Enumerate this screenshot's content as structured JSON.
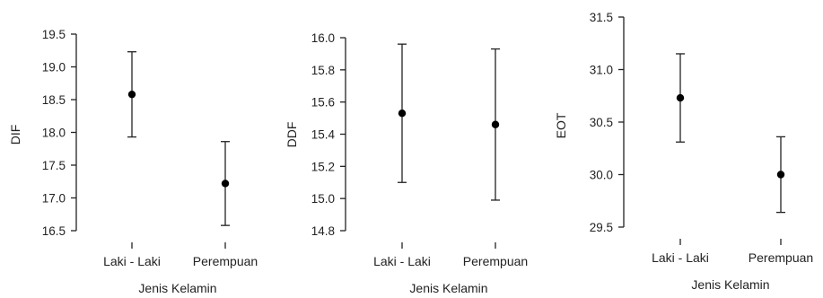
{
  "chart_data": [
    {
      "type": "errorbar",
      "ylabel": "DIF",
      "xlabel": "Jenis Kelamin",
      "categories": [
        "Laki - Laki",
        "Perempuan"
      ],
      "ylim": [
        16.5,
        19.5
      ],
      "yticks": [
        "16.5",
        "17.0",
        "17.5",
        "18.0",
        "18.5",
        "19.0",
        "19.5"
      ],
      "points": [
        {
          "category": "Laki - Laki",
          "mean": 18.58,
          "lower": 17.93,
          "upper": 19.23
        },
        {
          "category": "Perempuan",
          "mean": 17.22,
          "lower": 16.58,
          "upper": 17.86
        }
      ]
    },
    {
      "type": "errorbar",
      "ylabel": "DDF",
      "xlabel": "Jenis Kelamin",
      "categories": [
        "Laki - Laki",
        "Perempuan"
      ],
      "ylim": [
        14.8,
        16.0
      ],
      "yticks": [
        "14.8",
        "15.0",
        "15.2",
        "15.4",
        "15.6",
        "15.8",
        "16.0"
      ],
      "points": [
        {
          "category": "Laki - Laki",
          "mean": 15.53,
          "lower": 15.1,
          "upper": 15.96
        },
        {
          "category": "Perempuan",
          "mean": 15.46,
          "lower": 14.99,
          "upper": 15.93
        }
      ]
    },
    {
      "type": "errorbar",
      "ylabel": "EOT",
      "xlabel": "Jenis Kelamin",
      "categories": [
        "Laki - Laki",
        "Perempuan"
      ],
      "ylim": [
        29.5,
        31.5
      ],
      "yticks": [
        "29.5",
        "30.0",
        "30.5",
        "31.0",
        "31.5"
      ],
      "points": [
        {
          "category": "Laki - Laki",
          "mean": 30.73,
          "lower": 30.31,
          "upper": 31.15
        },
        {
          "category": "Perempuan",
          "mean": 30.0,
          "lower": 29.64,
          "upper": 30.36
        }
      ]
    }
  ]
}
